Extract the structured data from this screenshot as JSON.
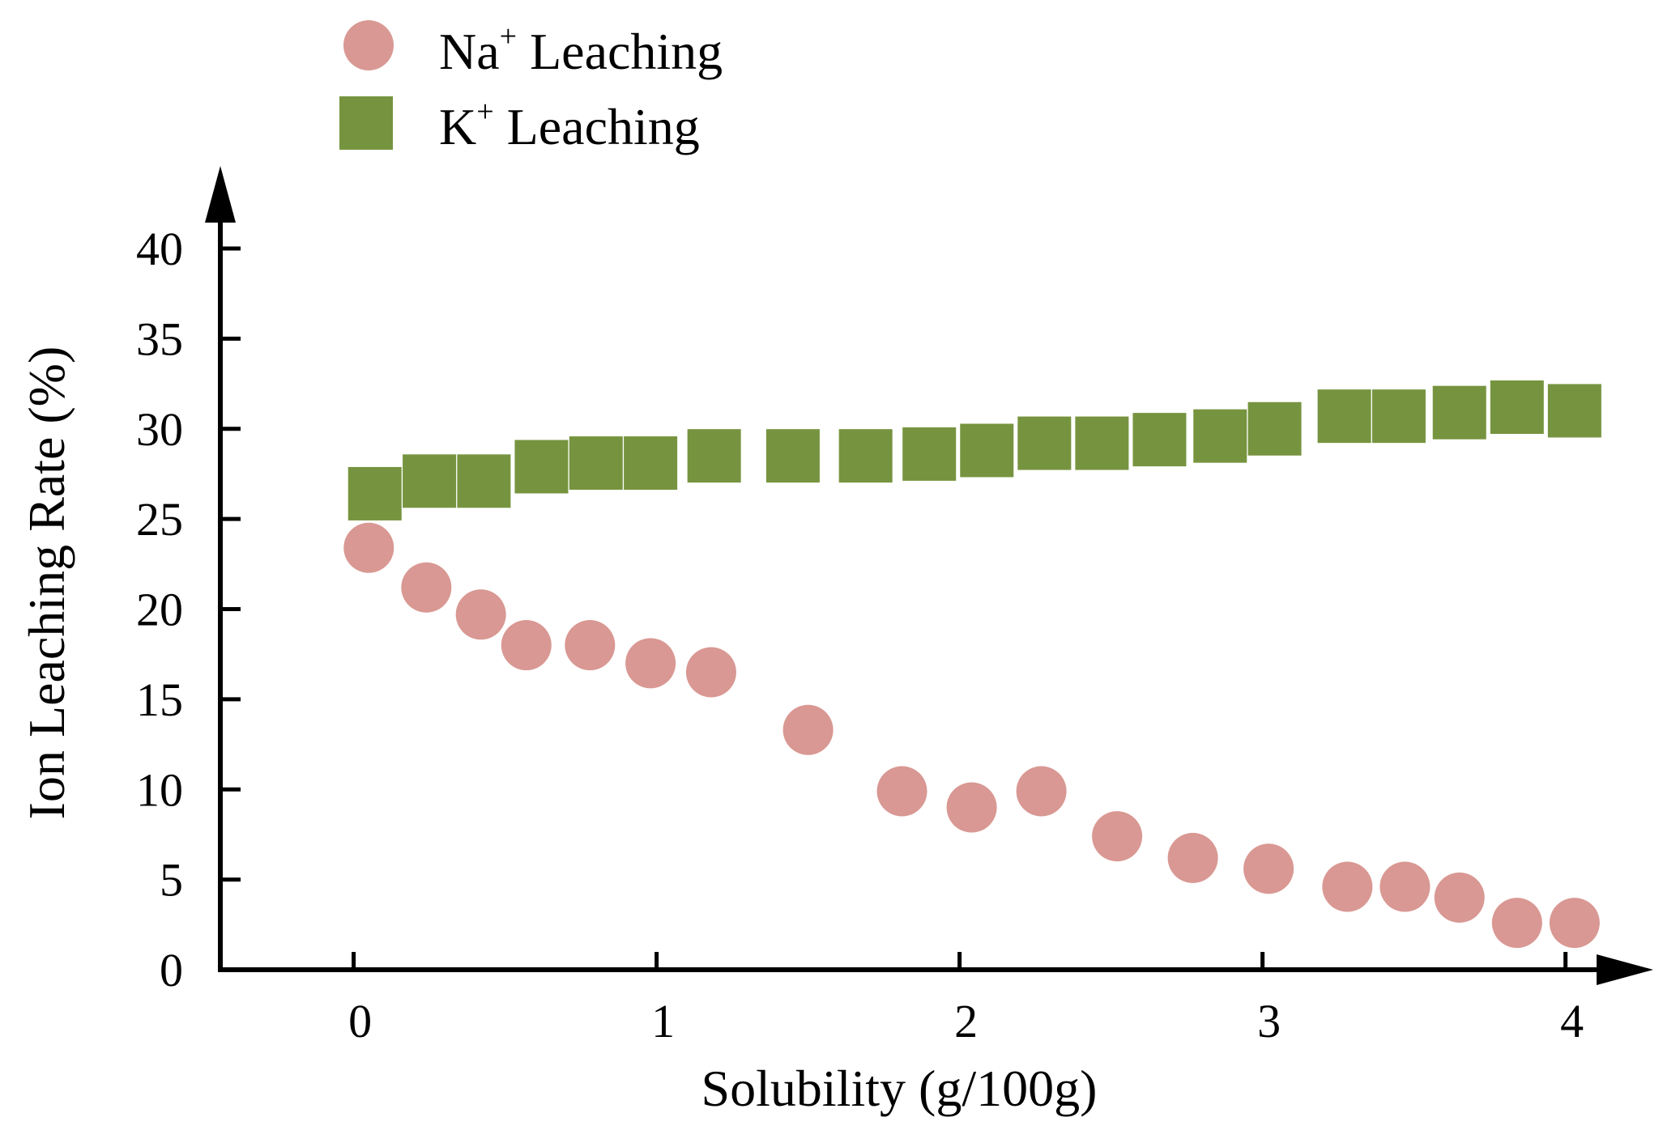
{
  "chart_data": {
    "type": "scatter",
    "title": "",
    "xlabel": "Solubility (g/100g)",
    "ylabel": "Ion Leaching Rate (%)",
    "xlim": [
      -0.44,
      4.14
    ],
    "ylim": [
      0,
      40
    ],
    "x_ticks": [
      0,
      1,
      2,
      3,
      4
    ],
    "y_ticks": [
      0,
      5,
      10,
      15,
      20,
      25,
      30,
      35,
      40
    ],
    "x_tick_labels": [
      "0",
      "1",
      "2",
      "3",
      "4"
    ],
    "y_tick_labels": [
      "0",
      "5",
      "10",
      "15",
      "20",
      "25",
      "30",
      "35",
      "40"
    ],
    "grid": false,
    "legend_position": "top-left",
    "series": [
      {
        "name": "Na+ Leaching",
        "legend_main": "Na",
        "legend_sup": "+",
        "legend_rest": " Leaching",
        "marker": "circle",
        "color": "#d99893",
        "x": [
          0.05,
          0.24,
          0.42,
          0.57,
          0.78,
          0.98,
          1.18,
          1.5,
          1.81,
          2.04,
          2.27,
          2.52,
          2.77,
          3.02,
          3.28,
          3.47,
          3.65,
          3.84,
          4.03
        ],
        "y": [
          23.4,
          21.2,
          19.7,
          18.0,
          18.0,
          17.0,
          16.5,
          13.3,
          9.9,
          9.0,
          9.9,
          7.4,
          6.2,
          5.6,
          4.6,
          4.6,
          4.0,
          2.6,
          2.6
        ]
      },
      {
        "name": "K+ Leaching",
        "legend_main": "K",
        "legend_sup": "+",
        "legend_rest": " Leaching",
        "marker": "square",
        "color": "#76943f",
        "x": [
          0.07,
          0.25,
          0.43,
          0.62,
          0.8,
          0.98,
          1.19,
          1.45,
          1.69,
          1.9,
          2.09,
          2.28,
          2.47,
          2.66,
          2.86,
          3.04,
          3.27,
          3.45,
          3.65,
          3.84,
          4.03
        ],
        "y": [
          26.4,
          27.1,
          27.1,
          27.9,
          28.1,
          28.1,
          28.5,
          28.5,
          28.5,
          28.6,
          28.8,
          29.2,
          29.2,
          29.4,
          29.6,
          30.0,
          30.7,
          30.7,
          30.9,
          31.2,
          31.0
        ]
      }
    ]
  }
}
